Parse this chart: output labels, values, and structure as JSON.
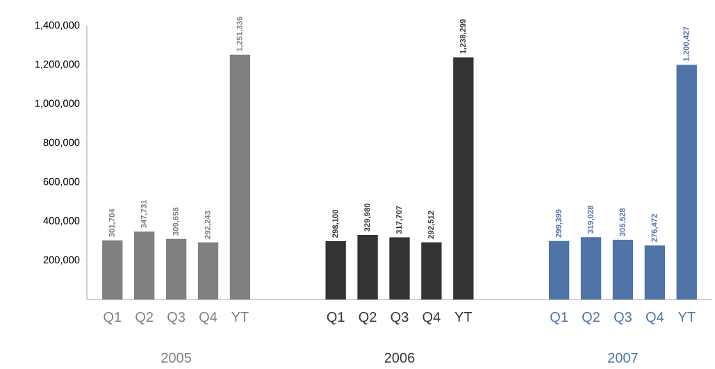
{
  "chart_data": {
    "type": "bar",
    "categories": [
      "Q1",
      "Q2",
      "Q3",
      "Q4",
      "YT",
      null,
      null,
      "Q1",
      "Q2",
      "Q3",
      "Q4",
      "YT",
      null,
      null,
      "Q1",
      "Q2",
      "Q3",
      "Q4",
      "YT"
    ],
    "series": [
      {
        "name": "2005",
        "color": "#808080",
        "values": [
          301704,
          347731,
          309658,
          292243,
          1251336,
          null,
          null,
          null,
          null,
          null,
          null,
          null,
          null,
          null,
          null,
          null,
          null,
          null,
          null
        ],
        "value_labels": [
          "301,704",
          "347,731",
          "309,658",
          "292,243",
          "1,251,336",
          null,
          null,
          null,
          null,
          null,
          null,
          null,
          null,
          null,
          null,
          null,
          null,
          null,
          null
        ]
      },
      {
        "name": "2006",
        "color": "#333333",
        "values": [
          null,
          null,
          null,
          null,
          null,
          null,
          null,
          298100,
          329980,
          317707,
          292512,
          1238299,
          null,
          null,
          null,
          null,
          null,
          null,
          null
        ],
        "value_labels": [
          null,
          null,
          null,
          null,
          null,
          null,
          null,
          "298,100",
          "329,980",
          "317,707",
          "292,512",
          "1,238,299",
          null,
          null,
          null,
          null,
          null,
          null,
          null
        ]
      },
      {
        "name": "2007",
        "color": "#4f74a8",
        "values": [
          null,
          null,
          null,
          null,
          null,
          null,
          null,
          null,
          null,
          null,
          null,
          null,
          null,
          null,
          299399,
          319028,
          305528,
          276472,
          1200427
        ],
        "value_labels": [
          null,
          null,
          null,
          null,
          null,
          null,
          null,
          null,
          null,
          null,
          null,
          null,
          null,
          null,
          "299,399",
          "319,028",
          "305,528",
          "276,472",
          "1,200,427"
        ]
      }
    ],
    "ylim": [
      0,
      1400000
    ],
    "yticks": [
      {
        "value": 200000,
        "label": "200,000"
      },
      {
        "value": 400000,
        "label": "400,000"
      },
      {
        "value": 600000,
        "label": "600,000"
      },
      {
        "value": 800000,
        "label": "800,000"
      },
      {
        "value": 1000000,
        "label": "1,000,000"
      },
      {
        "value": 1200000,
        "label": "1,200,000"
      },
      {
        "value": 1400000,
        "label": "1,400,000"
      }
    ]
  }
}
